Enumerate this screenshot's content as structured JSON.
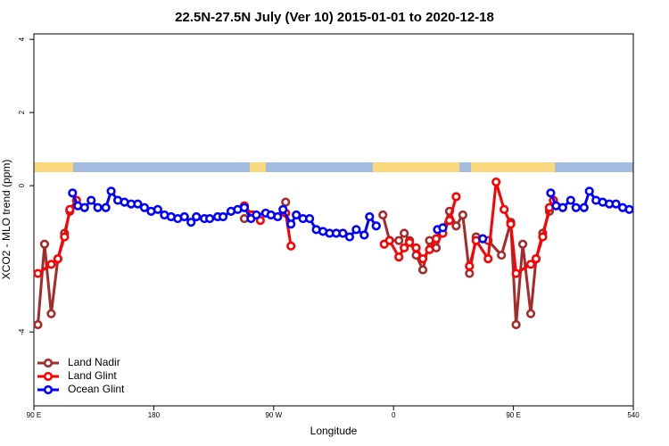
{
  "chart_data": {
    "type": "line",
    "title": "22.5N-27.5N July (Ver 10)   2015-01-01 to 2020-12-18",
    "x_label": "Longitude",
    "y_label": "XCO2 - MLO trend (ppm)",
    "xlim": [
      90,
      540
    ],
    "xticks": [
      {
        "value": 90,
        "label": "90 E"
      },
      180,
      {
        "value": 270,
        "label": "90 W"
      },
      {
        "value": 360,
        "label": "0"
      },
      {
        "value": 450,
        "label": "90 E"
      },
      540
    ],
    "ylim": [
      -6.02,
      4.15
    ],
    "yticks": [
      -4,
      0,
      2,
      4
    ],
    "legend": "bottom-left",
    "series": [
      {
        "name": "Land Nadir",
        "color": "#a52a2a",
        "x": [
          93,
          98,
          103,
          108,
          113,
          117,
          null,
          248,
          254,
          null,
          279,
          null,
          352,
          357,
          364,
          368,
          372,
          377,
          382,
          387,
          392,
          396,
          402,
          407,
          412,
          417,
          422,
          431,
          441,
          448,
          452,
          457,
          463,
          467,
          472,
          477,
          480
        ],
        "values": [
          -3.8,
          -1.6,
          -3.5,
          -2.0,
          -1.3,
          -0.7,
          null,
          -0.9,
          -0.8,
          null,
          -0.45,
          null,
          -0.8,
          -1.5,
          -1.5,
          -1.3,
          -1.5,
          -1.9,
          -2.3,
          -1.5,
          -1.7,
          -1.3,
          -0.7,
          -1.1,
          -0.8,
          -2.4,
          -1.4,
          -1.5,
          -1.9,
          -1.0,
          -3.8,
          -1.6,
          -3.5,
          -2.0,
          -1.3,
          -0.7,
          -0.4
        ]
      },
      {
        "name": "Land Glint",
        "color": "#ff0000",
        "x": [
          93,
          103,
          108,
          113,
          117,
          122,
          null,
          248,
          254,
          260,
          null,
          279,
          283,
          null,
          353,
          357,
          364,
          368,
          372,
          377,
          382,
          387,
          392,
          397,
          402,
          407,
          null,
          417,
          422,
          431,
          437,
          443,
          448,
          452,
          463,
          467,
          472,
          477,
          480
        ],
        "values": [
          -2.4,
          -2.15,
          -2.0,
          -1.4,
          -0.65,
          -0.4,
          null,
          -0.55,
          -0.8,
          -0.95,
          null,
          -0.75,
          -1.65,
          null,
          -1.6,
          -1.5,
          -1.95,
          -1.7,
          -1.55,
          -1.7,
          -2.0,
          -1.75,
          -1.45,
          -1.3,
          -0.95,
          -0.3,
          null,
          -2.2,
          -1.5,
          -2.0,
          0.1,
          -0.65,
          -1.05,
          -2.4,
          -2.15,
          -2.0,
          -1.4,
          -0.6,
          -0.4
        ]
      },
      {
        "name": "Ocean Glint",
        "color": "#0000ff",
        "x": [
          119,
          123,
          128,
          133,
          138,
          144,
          148,
          153,
          158,
          163,
          168,
          173,
          178,
          183,
          188,
          193,
          198,
          203,
          208,
          212,
          218,
          222,
          228,
          232,
          238,
          243,
          248,
          253,
          257,
          264,
          268,
          273,
          277,
          283,
          287,
          292,
          297,
          302,
          307,
          312,
          317,
          322,
          327,
          332,
          338,
          342,
          347,
          null,
          393,
          397,
          null,
          427,
          null,
          478,
          482,
          487,
          493,
          497,
          503,
          507,
          512,
          517,
          522,
          527,
          532,
          537
        ],
        "values": [
          -0.2,
          -0.55,
          -0.6,
          -0.4,
          -0.6,
          -0.6,
          -0.15,
          -0.4,
          -0.45,
          -0.5,
          -0.5,
          -0.6,
          -0.7,
          -0.65,
          -0.8,
          -0.85,
          -0.9,
          -0.85,
          -1.0,
          -0.85,
          -0.9,
          -0.9,
          -0.85,
          -0.85,
          -0.7,
          -0.65,
          -0.6,
          -0.9,
          -0.8,
          -0.75,
          -0.8,
          -0.85,
          -0.65,
          -1.05,
          -0.8,
          -0.9,
          -0.9,
          -1.2,
          -1.25,
          -1.3,
          -1.3,
          -1.3,
          -1.4,
          -1.2,
          -1.35,
          -0.85,
          -1.1,
          null,
          -1.2,
          -1.15,
          null,
          -1.45,
          null,
          -0.2,
          -0.55,
          -0.6,
          -0.4,
          -0.6,
          -0.6,
          -0.15,
          -0.4,
          -0.45,
          -0.5,
          -0.5,
          -0.6,
          -0.65
        ]
      }
    ]
  }
}
